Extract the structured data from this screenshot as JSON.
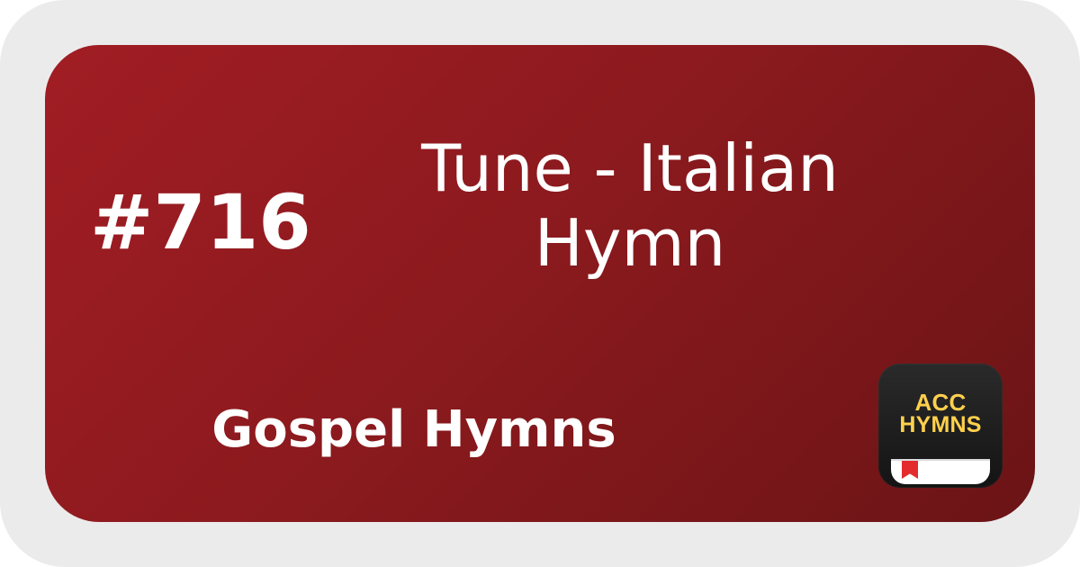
{
  "card": {
    "number": "#716",
    "title": "Tune - Italian\nHymn",
    "hymnal": "Gospel Hymns"
  },
  "app_icon": {
    "line1": "ACC",
    "line2": "HYMNS",
    "icon": "book-icon"
  },
  "colors": {
    "background": "#ebebeb",
    "card_start": "#a11d24",
    "card_end": "#6b1416",
    "text": "#ffffff",
    "icon_text": "#ffd04d",
    "ribbon": "#e32d2d"
  }
}
